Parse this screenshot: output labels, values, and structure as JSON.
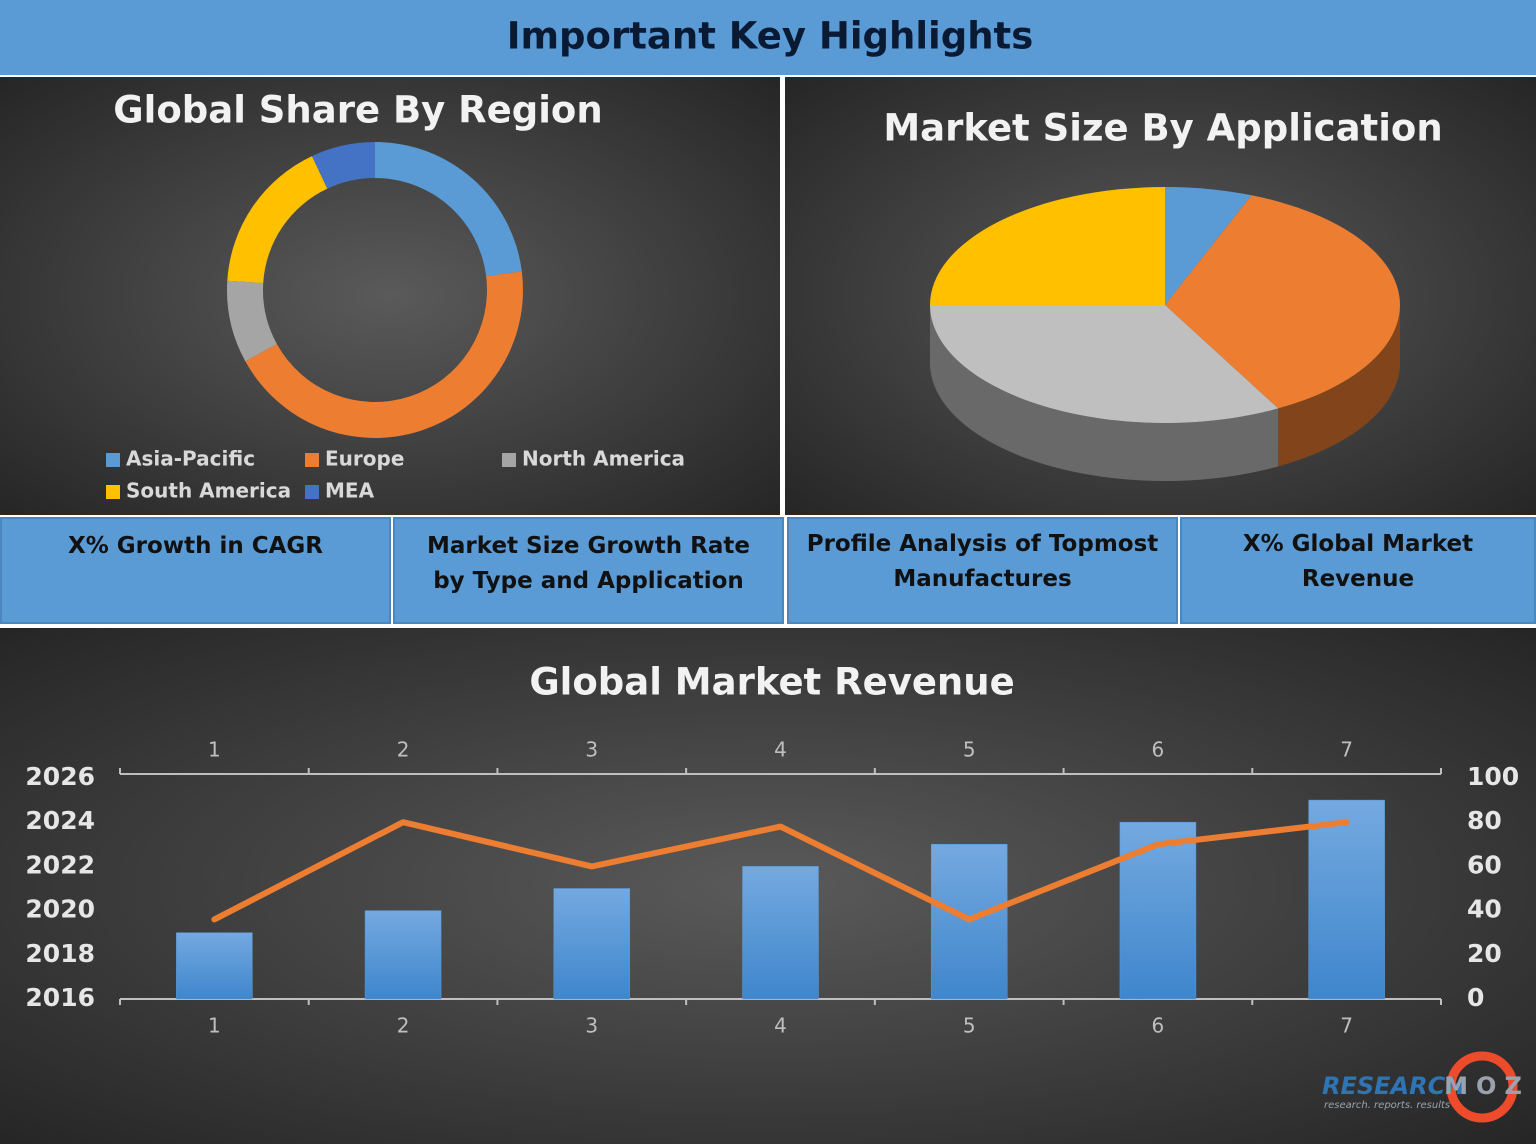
{
  "header": {
    "title": "Important Key Highlights"
  },
  "chart_data": [
    {
      "type": "donut",
      "title": "Global Share By Region",
      "categories": [
        "Asia-Pacific",
        "Europe",
        "North America",
        "South America",
        "MEA"
      ],
      "values": [
        23,
        44,
        9,
        17,
        7
      ],
      "colors": [
        "#5b9bd5",
        "#ed7d31",
        "#a5a5a5",
        "#ffc000",
        "#4472c4"
      ]
    },
    {
      "type": "pie3d",
      "title": "Market Size By Application",
      "values": [
        6,
        36,
        33,
        25
      ],
      "colors": [
        "#5b9bd5",
        "#ed7d31",
        "#bfbfbf",
        "#ffc000"
      ]
    },
    {
      "type": "combo",
      "title": "Global Market Revenue",
      "categories": [
        "1",
        "2",
        "3",
        "4",
        "5",
        "6",
        "7"
      ],
      "ylim": [
        2016,
        2026
      ],
      "yticks": [
        2016,
        2018,
        2020,
        2022,
        2024,
        2026
      ],
      "y2lim": [
        0,
        100
      ],
      "y2ticks": [
        0,
        20,
        40,
        60,
        80,
        100
      ],
      "series": [
        {
          "type": "bar",
          "color": "#5b9bd5",
          "values": [
            2019,
            2020,
            2021,
            2022,
            2023,
            2024,
            2025
          ]
        },
        {
          "type": "line",
          "color": "#ed7d31",
          "axis": "y2",
          "values": [
            36,
            80,
            60,
            78,
            36,
            70,
            80
          ]
        }
      ]
    }
  ],
  "highlights": [
    "X% Growth in CAGR",
    "Market Size Growth Rate by Type and Application",
    "Profile Analysis of Topmost Manufactures",
    "X% Global Market Revenue"
  ],
  "logo": {
    "brand": "RESEARCH",
    "brand2": "MOZ",
    "tagline": "research. reports. results"
  }
}
